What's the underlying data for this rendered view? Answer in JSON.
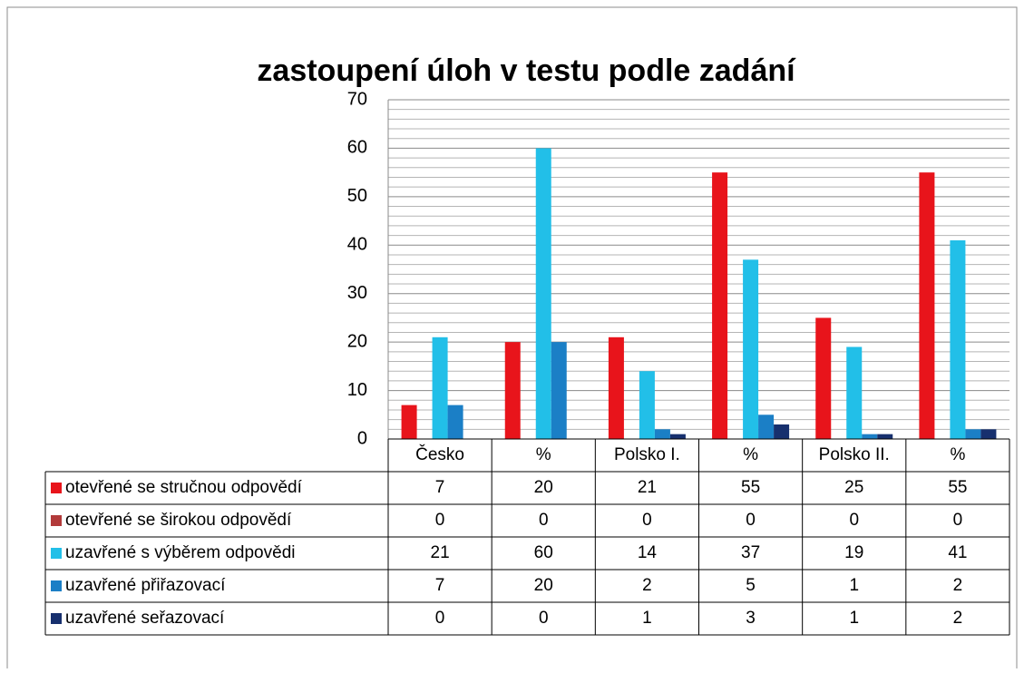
{
  "chart_data": {
    "type": "bar",
    "title": "zastoupení úloh v testu podle zadání",
    "categories": [
      "Česko",
      "%",
      "Polsko I.",
      "%",
      "Polsko II.",
      "%"
    ],
    "series": [
      {
        "name": "otevřené se stručnou odpovědí",
        "color": "#e8141b",
        "values": [
          7,
          20,
          21,
          55,
          25,
          55
        ]
      },
      {
        "name": "otevřené se širokou odpovědí",
        "color": "#b23a3a",
        "values": [
          0,
          0,
          0,
          0,
          0,
          0
        ]
      },
      {
        "name": "uzavřené s výběrem odpovědi",
        "color": "#22bfe8",
        "values": [
          21,
          60,
          14,
          37,
          19,
          41
        ]
      },
      {
        "name": "uzavřené přiřazovací",
        "color": "#1b7fc6",
        "values": [
          7,
          20,
          2,
          5,
          1,
          2
        ]
      },
      {
        "name": "uzavřené seřazovací",
        "color": "#17306e",
        "values": [
          0,
          0,
          1,
          3,
          1,
          2
        ]
      }
    ],
    "ylim": [
      0,
      70
    ],
    "yticks": [
      0,
      10,
      20,
      30,
      40,
      50,
      60,
      70
    ],
    "minor_yticks": [
      2,
      4,
      6,
      8,
      12,
      14,
      16,
      18,
      22,
      24,
      26,
      28,
      32,
      34,
      36,
      38,
      42,
      44,
      46,
      48,
      52,
      54,
      56,
      58,
      62,
      64,
      66,
      68
    ],
    "grid": true,
    "data_table": true
  }
}
